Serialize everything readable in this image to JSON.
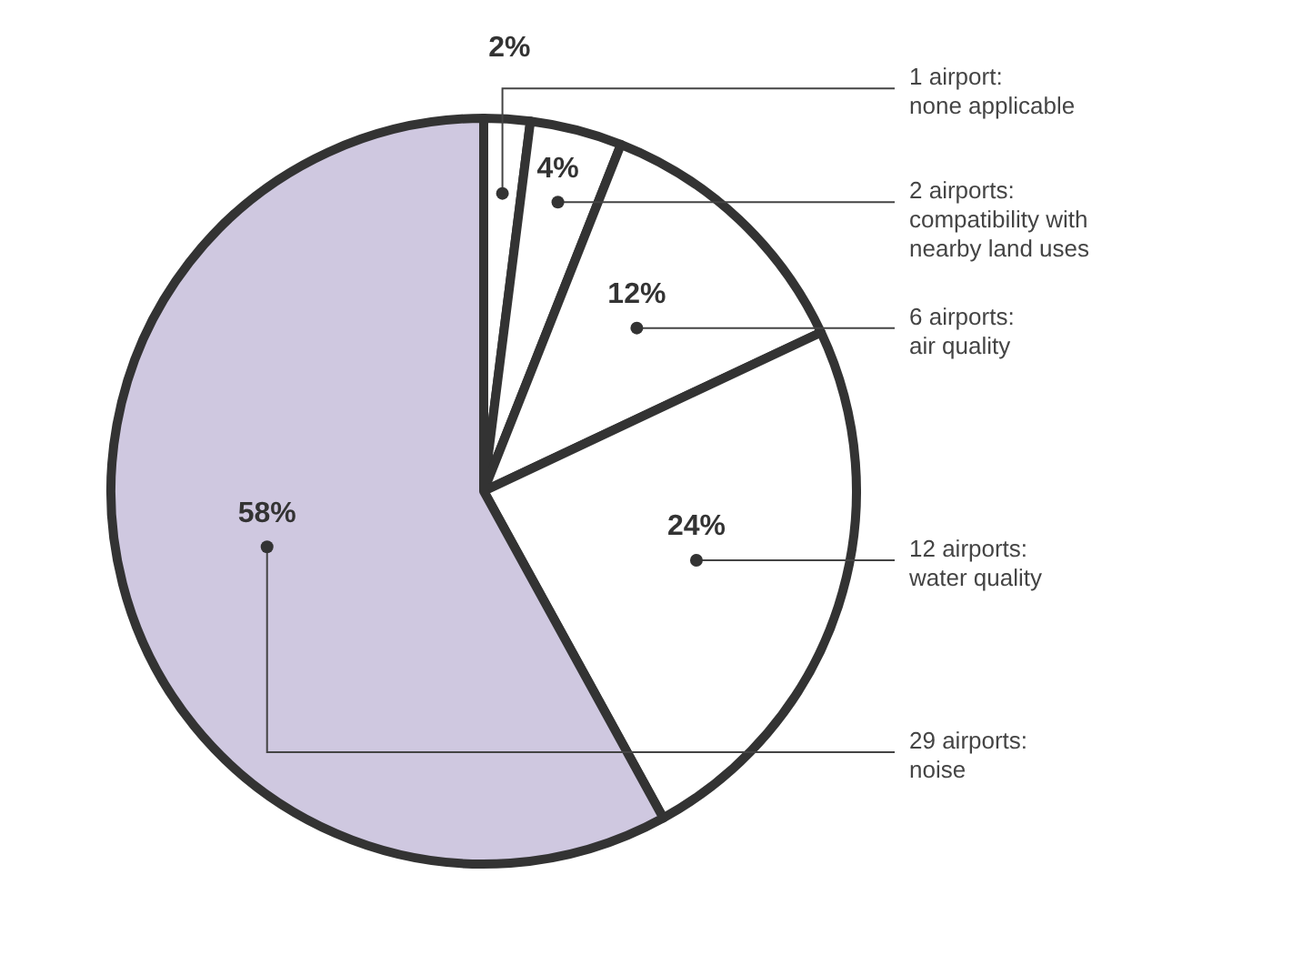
{
  "chart_data": {
    "type": "pie",
    "categories": [
      "1 airport:\nnone applicable",
      "2 airports:\ncompatibility with\nnearby land uses",
      "6 airports:\nair quality",
      "12 airports:\nwater quality",
      "29 airports:\nnoise"
    ],
    "values": [
      2,
      4,
      12,
      24,
      58
    ],
    "value_labels": [
      "2%",
      "4%",
      "12%",
      "24%",
      "58%"
    ],
    "colors": [
      "#ffffff",
      "#ffffff",
      "#ffffff",
      "#ffffff",
      "#cfc8e0"
    ]
  }
}
